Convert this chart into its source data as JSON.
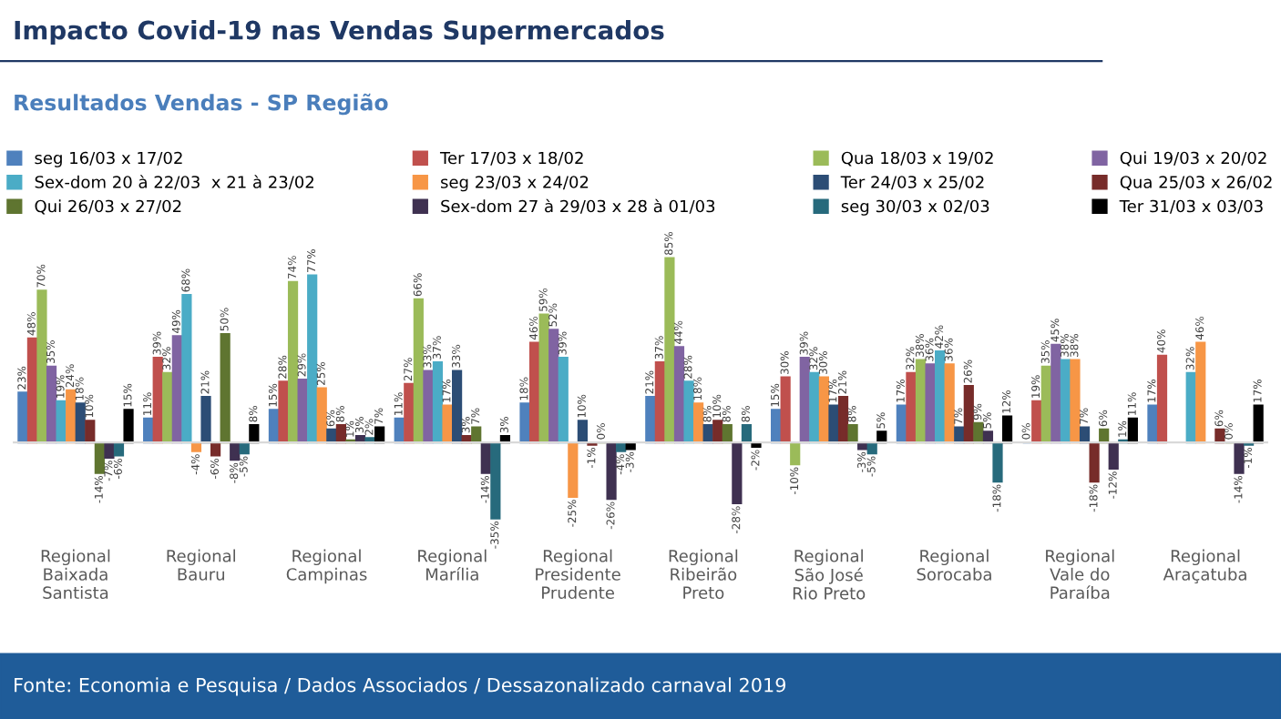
{
  "chart_data": {
    "type": "bar",
    "title": "Impacto Covid-19 nas Vendas Supermercados",
    "subtitle": "Resultados Vendas - SP Região",
    "annotations": [
      "Fonte: Economia e Pesquisa / Dados Associados / Dessazonalizado carnaval 2019"
    ],
    "categories": [
      "Regional Baixada Santista",
      "Regional Bauru",
      "Regional Campinas",
      "Regional Marília",
      "Regional Presidente Prudente",
      "Regional Ribeirão Preto",
      "Regional São José Rio Preto",
      "Regional Sorocaba",
      "Regional Vale do Paraíba",
      "Regional Araçatuba"
    ],
    "series": [
      {
        "name": "seg 16/03 x 17/02",
        "color": "#4f81bd",
        "values": [
          23,
          11,
          15,
          11,
          18,
          21,
          15,
          17,
          0,
          17
        ],
        "value_labels": [
          "23%",
          "11%",
          "15%",
          "11%",
          "18%",
          "21%",
          "15%",
          "17%",
          "0%",
          "17%"
        ]
      },
      {
        "name": "Ter 17/03 x 18/02",
        "color": "#c0504d",
        "values": [
          48,
          39,
          28,
          27,
          46,
          37,
          30,
          32,
          19,
          40
        ],
        "value_labels": [
          "48%",
          "39%",
          "28%",
          "27%",
          "46%",
          "37%",
          "30%",
          "32%",
          "19%",
          "40%"
        ]
      },
      {
        "name": "Qua 18/03 x 19/02",
        "color": "#9bbb59",
        "values": [
          70,
          32,
          74,
          66,
          59,
          85,
          -10,
          38,
          35,
          null
        ],
        "value_labels": [
          "70%",
          "32%",
          "74%",
          "66%",
          "59%",
          "85%",
          "-10%",
          "38%",
          "35%",
          null
        ]
      },
      {
        "name": "Qui 19/03 x 20/02",
        "color": "#8064a2",
        "values": [
          35,
          49,
          29,
          33,
          52,
          44,
          39,
          36,
          45,
          null
        ],
        "value_labels": [
          "35%",
          "49%",
          "29%",
          "33%",
          "52%",
          "44%",
          "39%",
          "36%",
          "45%",
          null
        ]
      },
      {
        "name": "Sex-dom 20 à 22/03  x 21 à 23/02",
        "color": "#4bacc6",
        "values": [
          19,
          68,
          77,
          37,
          39,
          28,
          32,
          42,
          38,
          32
        ],
        "value_labels": [
          "19%",
          "68%",
          "77%",
          "37%",
          "39%",
          "28%",
          "32%",
          "42%",
          "38%",
          "32%"
        ]
      },
      {
        "name": "seg 23/03 x 24/02",
        "color": "#f79646",
        "values": [
          24,
          -4,
          25,
          17,
          -25,
          18,
          30,
          36,
          38,
          46
        ],
        "value_labels": [
          "24%",
          "-4%",
          "25%",
          "17%",
          "-25%",
          "18%",
          "30%",
          "36%",
          "38%",
          "46%"
        ]
      },
      {
        "name": "Ter 24/03 x 25/02",
        "color": "#2c4d75",
        "values": [
          18,
          21,
          6,
          33,
          10,
          8,
          17,
          7,
          7,
          null
        ],
        "value_labels": [
          "18%",
          "21%",
          "6%",
          "33%",
          "10%",
          "8%",
          "17%",
          "7%",
          "7%",
          null
        ]
      },
      {
        "name": "Qua 25/03 x 26/02",
        "color": "#772c2a",
        "values": [
          10,
          -6,
          8,
          3,
          -1,
          10,
          21,
          26,
          -18,
          6
        ],
        "value_labels": [
          "10%",
          "-6%",
          "8%",
          "3%",
          "-1%",
          "10%",
          "21%",
          "26%",
          "-18%",
          "6%"
        ]
      },
      {
        "name": "Qui 26/03 x 27/02",
        "color": "#5f7530",
        "values": [
          -14,
          50,
          1,
          7,
          0,
          8,
          8,
          9,
          6,
          0
        ],
        "value_labels": [
          "-14%",
          "50%",
          "1%",
          "7%",
          "0%",
          "8%",
          "8%",
          "9%",
          "6%",
          "0%"
        ]
      },
      {
        "name": "Sex-dom 27 à 29/03 x 28 à 01/03",
        "color": "#3f3151",
        "values": [
          -7,
          -8,
          3,
          -14,
          -26,
          -28,
          -3,
          5,
          -12,
          -14
        ],
        "value_labels": [
          "-7%",
          "-8%",
          "3%",
          "-14%",
          "-26%",
          "-28%",
          "-3%",
          "5%",
          "-12%",
          "-14%"
        ]
      },
      {
        "name": "seg 30/03 x 02/03",
        "color": "#276a7c",
        "values": [
          -6,
          -5,
          2,
          -35,
          -4,
          8,
          -5,
          -18,
          1,
          -1
        ],
        "value_labels": [
          "-6%",
          "-5%",
          "2%",
          "-35%",
          "-4%",
          "8%",
          "-5%",
          "-18%",
          "1%",
          "-1%"
        ]
      },
      {
        "name": "Ter 31/03 x 03/03",
        "color": "#000000",
        "values": [
          15,
          8,
          7,
          3,
          -3,
          -2,
          5,
          12,
          11,
          17
        ],
        "value_labels": [
          "15%",
          "8%",
          "7%",
          "3%",
          "-3%",
          "-2%",
          "5%",
          "12%",
          "11%",
          "17%"
        ]
      }
    ],
    "legend": "top",
    "grid": false
  }
}
